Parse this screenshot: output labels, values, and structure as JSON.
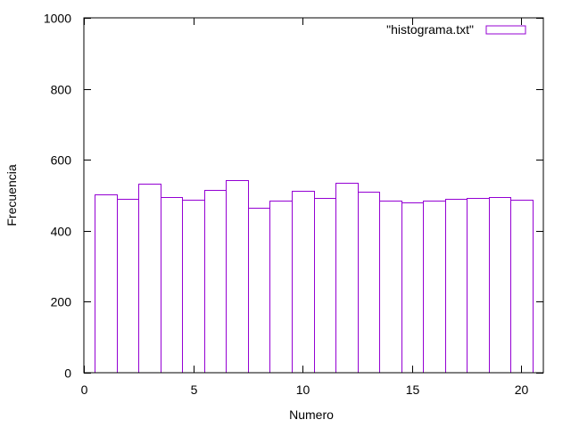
{
  "chart_data": {
    "type": "bar",
    "title": "",
    "xlabel": "Numero",
    "ylabel": "Frecuencia",
    "xlim": [
      0,
      21
    ],
    "ylim": [
      0,
      1000
    ],
    "xticks": [
      0,
      5,
      10,
      15,
      20
    ],
    "yticks": [
      0,
      200,
      400,
      600,
      800,
      1000
    ],
    "grid": false,
    "legend_position": "top-right",
    "bar_width": 1,
    "series": [
      {
        "name": "\"histograma.txt\"",
        "color": "#9400d3",
        "x": [
          1,
          2,
          3,
          4,
          5,
          6,
          7,
          8,
          9,
          10,
          11,
          12,
          13,
          14,
          15,
          16,
          17,
          18,
          19,
          20
        ],
        "values": [
          502,
          490,
          533,
          495,
          487,
          515,
          542,
          465,
          485,
          512,
          492,
          535,
          510,
          485,
          480,
          485,
          490,
          492,
          495,
          487
        ]
      }
    ]
  }
}
